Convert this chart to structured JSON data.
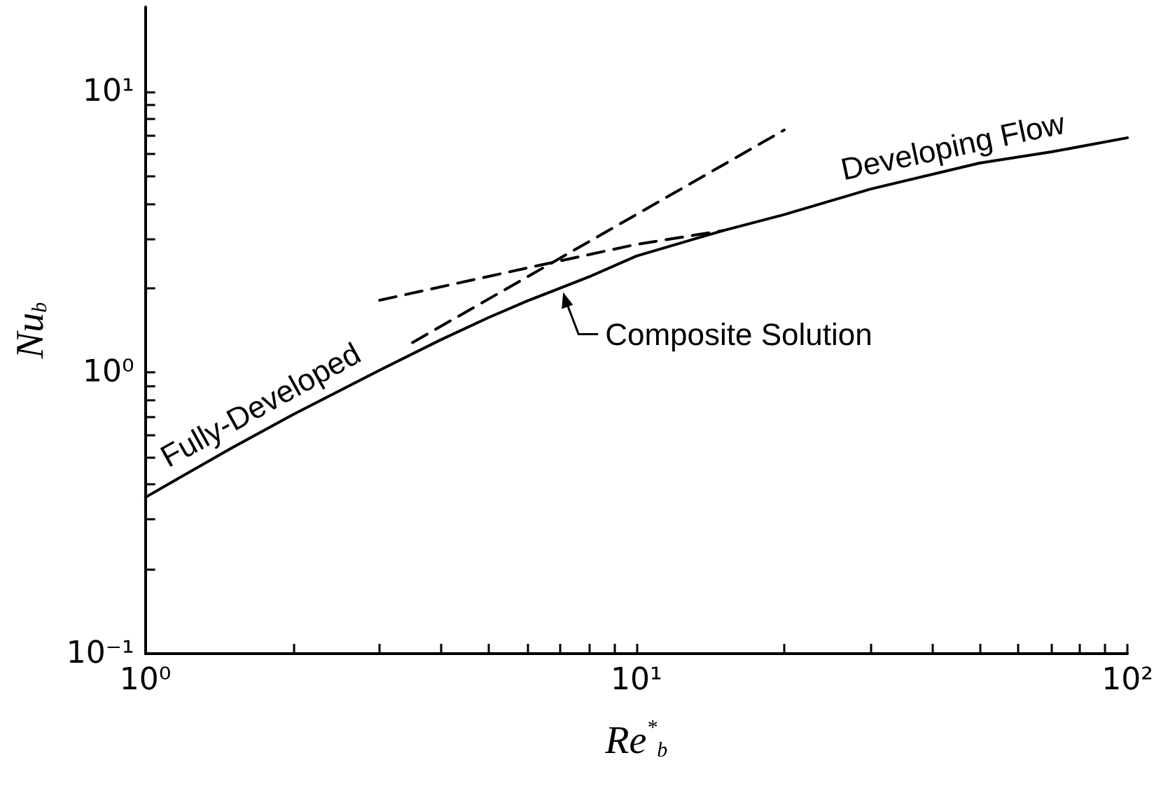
{
  "chart_data": {
    "type": "line",
    "xlabel": "Re$^{*}$$_{b}$",
    "ylabel": "Nu$_{b}$",
    "log": "xy",
    "grid": false,
    "marker": "none",
    "xlim": [
      1,
      100
    ],
    "ylim": [
      0.1,
      20
    ],
    "xticks": [
      {
        "value": 1,
        "label": "10⁰"
      },
      {
        "value": 2,
        "label": null
      },
      {
        "value": 3,
        "label": null
      },
      {
        "value": 4,
        "label": null
      },
      {
        "value": 5,
        "label": null
      },
      {
        "value": 6,
        "label": null
      },
      {
        "value": 7,
        "label": null
      },
      {
        "value": 8,
        "label": null
      },
      {
        "value": 9,
        "label": null
      },
      {
        "value": 10,
        "label": "10¹"
      },
      {
        "value": 20,
        "label": null
      },
      {
        "value": 30,
        "label": null
      },
      {
        "value": 40,
        "label": null
      },
      {
        "value": 50,
        "label": null
      },
      {
        "value": 60,
        "label": null
      },
      {
        "value": 70,
        "label": null
      },
      {
        "value": 80,
        "label": null
      },
      {
        "value": 90,
        "label": null
      },
      {
        "value": 100,
        "label": "10²"
      }
    ],
    "yticks": [
      {
        "value": 0.1,
        "label": "10⁻¹"
      },
      {
        "value": 0.2,
        "label": null
      },
      {
        "value": 0.3,
        "label": null
      },
      {
        "value": 0.4,
        "label": null
      },
      {
        "value": 0.5,
        "label": null
      },
      {
        "value": 0.6,
        "label": null
      },
      {
        "value": 0.7,
        "label": null
      },
      {
        "value": 0.8,
        "label": null
      },
      {
        "value": 0.9,
        "label": null
      },
      {
        "value": 1,
        "label": "10⁰"
      },
      {
        "value": 2,
        "label": null
      },
      {
        "value": 3,
        "label": null
      },
      {
        "value": 4,
        "label": null
      },
      {
        "value": 5,
        "label": null
      },
      {
        "value": 6,
        "label": null
      },
      {
        "value": 7,
        "label": null
      },
      {
        "value": 8,
        "label": null
      },
      {
        "value": 9,
        "label": null
      },
      {
        "value": 10,
        "label": "10¹"
      }
    ],
    "series": [
      {
        "color": "#000000",
        "line_style": "solid",
        "x": [
          1,
          1.5,
          2,
          3,
          4,
          5,
          6,
          7,
          8,
          10,
          15,
          20,
          30,
          50,
          70,
          100
        ],
        "values": [
          0.36,
          0.54,
          0.71,
          1.02,
          1.31,
          1.57,
          1.8,
          2.0,
          2.19,
          2.6,
          3.2,
          3.65,
          4.5,
          5.57,
          6.1,
          6.85
        ]
      },
      {
        "color": "#000000",
        "line_style": "dashed",
        "x": [
          3.5,
          20
        ],
        "values": [
          1.28,
          7.3
        ]
      },
      {
        "color": "#000000",
        "line_style": "dashed",
        "x": [
          3,
          5,
          7,
          10,
          15
        ],
        "values": [
          1.81,
          2.2,
          2.5,
          2.86,
          3.2
        ]
      }
    ],
    "annotations": [
      {
        "text": "Fully-Developed",
        "x": 1.8,
        "y": 0.66
      },
      {
        "text": "Developing Flow",
        "x": 45,
        "y": 5.4
      },
      {
        "text": "Composite Solution",
        "x": 7,
        "y": 2.0
      }
    ]
  }
}
